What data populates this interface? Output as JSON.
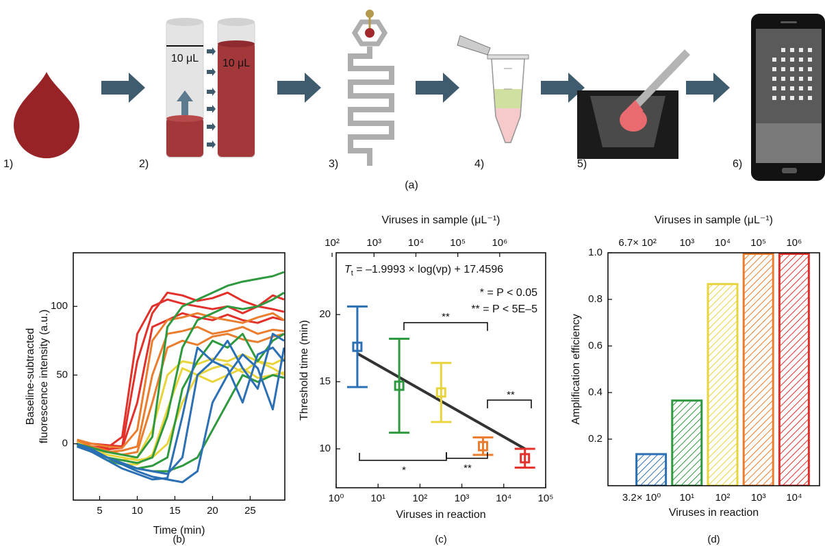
{
  "panel_a": {
    "steps": [
      "1)",
      "2)",
      "3)",
      "4)",
      "5)",
      "6)"
    ],
    "volume_labels": [
      "10 μL",
      "10 μL"
    ],
    "caption": "(a)"
  },
  "chart_data": [
    {
      "type": "line",
      "caption": "(b)",
      "xlabel": "Time (min)",
      "ylabel": [
        "Baseline-subtracted",
        "fluorescence intensity (a.u.)"
      ],
      "x": [
        2,
        4,
        6,
        8,
        10,
        12,
        14,
        16,
        18,
        20,
        22,
        24,
        26,
        28,
        29.5
      ],
      "xlim": [
        1.5,
        29.6
      ],
      "xticks": [
        5,
        10,
        15,
        20,
        25
      ],
      "ylim": [
        -41,
        139
      ],
      "yticks": [
        0,
        50,
        100
      ],
      "series": [
        {
          "color": "#e2302a",
          "values": [
            0,
            -2,
            -3,
            5,
            80,
            100,
            105,
            102,
            100,
            98,
            100,
            95,
            100,
            98,
            96
          ]
        },
        {
          "color": "#e2302a",
          "values": [
            2,
            0,
            -1,
            -2,
            60,
            95,
            110,
            108,
            104,
            106,
            110,
            104,
            100,
            108,
            105
          ]
        },
        {
          "color": "#e2302a",
          "values": [
            0,
            -3,
            -4,
            -3,
            30,
            85,
            90,
            95,
            92,
            90,
            94,
            90,
            88,
            92,
            90
          ]
        },
        {
          "color": "#ea7d2e",
          "values": [
            3,
            0,
            -2,
            -3,
            10,
            75,
            90,
            92,
            95,
            92,
            90,
            88,
            92,
            95,
            90
          ]
        },
        {
          "color": "#ea7d2e",
          "values": [
            0,
            -4,
            -6,
            -5,
            -2,
            50,
            80,
            82,
            85,
            80,
            82,
            85,
            80,
            83,
            82
          ]
        },
        {
          "color": "#ea7d2e",
          "values": [
            2,
            -2,
            -5,
            -8,
            -6,
            30,
            70,
            75,
            72,
            78,
            80,
            76,
            74,
            78,
            80
          ]
        },
        {
          "color": "#e8d43c",
          "values": [
            0,
            -5,
            -10,
            -12,
            -10,
            10,
            50,
            60,
            58,
            62,
            60,
            65,
            60,
            58,
            62
          ]
        },
        {
          "color": "#e8d43c",
          "values": [
            -2,
            -6,
            -12,
            -15,
            -15,
            -8,
            25,
            55,
            50,
            55,
            58,
            52,
            60,
            55,
            50
          ]
        },
        {
          "color": "#e8d43c",
          "values": [
            1,
            -4,
            -8,
            -10,
            -12,
            -10,
            0,
            30,
            50,
            45,
            50,
            55,
            48,
            50,
            52
          ]
        },
        {
          "color": "#2f993f",
          "values": [
            0,
            -3,
            -6,
            -8,
            -10,
            5,
            85,
            100,
            105,
            110,
            115,
            118,
            120,
            122,
            125
          ]
        },
        {
          "color": "#2f993f",
          "values": [
            -1,
            -5,
            -10,
            -12,
            -14,
            -10,
            20,
            70,
            90,
            95,
            100,
            98,
            100,
            105,
            110
          ]
        },
        {
          "color": "#2f993f",
          "values": [
            0,
            -6,
            -12,
            -15,
            -18,
            -16,
            -10,
            40,
            60,
            75,
            70,
            80,
            60,
            75,
            80
          ]
        },
        {
          "color": "#2f993f",
          "values": [
            0,
            -4,
            -10,
            -14,
            -18,
            -20,
            -20,
            -16,
            -10,
            10,
            30,
            50,
            45,
            50,
            48
          ]
        },
        {
          "color": "#2b6fb4",
          "values": [
            0,
            -4,
            -10,
            -14,
            -18,
            -20,
            -22,
            -10,
            50,
            60,
            55,
            30,
            65,
            70,
            60
          ]
        },
        {
          "color": "#2b6fb4",
          "values": [
            -2,
            -6,
            -12,
            -18,
            -22,
            -26,
            -25,
            20,
            70,
            60,
            75,
            55,
            40,
            80,
            75
          ]
        },
        {
          "color": "#2b6fb4",
          "values": [
            0,
            -5,
            -10,
            -15,
            -20,
            -24,
            -26,
            -28,
            -20,
            30,
            50,
            65,
            55,
            25,
            70
          ]
        }
      ]
    },
    {
      "type": "errorbar",
      "caption": "(c)",
      "xlabel": "Viruses in reaction",
      "ylabel": "Threshold time (min)",
      "x2label": "Viruses in sample (μL⁻¹)",
      "xscale": "log",
      "xlim": [
        1,
        100000
      ],
      "xticks": [
        {
          "value": 1,
          "label": "10⁰"
        },
        {
          "value": 10,
          "label": "10¹"
        },
        {
          "value": 100,
          "label": "10²"
        },
        {
          "value": 1000,
          "label": "10³"
        },
        {
          "value": 10000,
          "label": "10⁴"
        },
        {
          "value": 100000,
          "label": "10⁵"
        }
      ],
      "x2lim": [
        125,
        12500000
      ],
      "x2ticks": [
        {
          "value": 100,
          "label": "10²"
        },
        {
          "value": 1000,
          "label": "10³"
        },
        {
          "value": 10000,
          "label": "10⁴"
        },
        {
          "value": 100000,
          "label": "10⁵"
        },
        {
          "value": 1000000,
          "label": "10⁶"
        }
      ],
      "ylim": [
        7.1,
        24.6
      ],
      "yticks": [
        10,
        15,
        20
      ],
      "x": [
        3.2,
        32,
        320,
        3200,
        32000
      ],
      "values": [
        17.6,
        14.7,
        14.2,
        10.2,
        9.3
      ],
      "errors": [
        3.0,
        3.5,
        2.2,
        0.65,
        0.7
      ],
      "colors": [
        "#2b6fb4",
        "#2f993f",
        "#e8d43c",
        "#ea7d2e",
        "#e2302a"
      ],
      "fit": {
        "x": [
          3.2,
          32000
        ],
        "values": [
          17.1,
          10.0
        ],
        "color": "#333333"
      },
      "equation_symbol": "T",
      "equation_subscript": "t",
      "equation_rest": " = –1.9993 × log(vp) + 17.4596",
      "significance_legend": [
        "* = P < 0.05",
        "** = P < 5E–5"
      ],
      "brackets": [
        "**",
        "**",
        "*",
        "**"
      ]
    },
    {
      "type": "bar",
      "caption": "(d)",
      "xlabel": "Viruses in reaction",
      "ylabel": "Amplification efficiency",
      "x2label": "Viruses in sample (μL⁻¹)",
      "categories": [
        "3.2× 10⁰",
        "10¹",
        "10²",
        "10³",
        "10⁴"
      ],
      "top_categories": [
        "6.7× 10²",
        "10³",
        "10⁴",
        "10⁵",
        "10⁶"
      ],
      "values": [
        0.14,
        0.37,
        0.87,
        1.0,
        1.0
      ],
      "colors": [
        "#2b6fb4",
        "#2f993f",
        "#e8d43c",
        "#ea7d2e",
        "#e2302a"
      ],
      "hatch": true,
      "ylim": [
        0,
        1
      ],
      "yticks": [
        0.2,
        0.4,
        0.6,
        0.8,
        {
          "value": 1,
          "label": "1.0"
        }
      ]
    }
  ]
}
